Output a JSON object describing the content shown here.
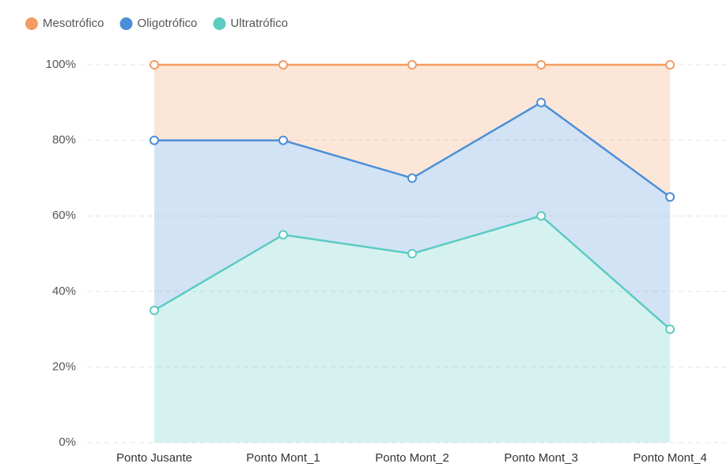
{
  "chart_data": {
    "type": "stacked_area",
    "categories": [
      "Ponto Jusante",
      "Ponto Mont_1",
      "Ponto Mont_2",
      "Ponto Mont_3",
      "Ponto Mont_4"
    ],
    "series": [
      {
        "name": "Mesotrófico",
        "color": "#f39c63",
        "values": [
          20,
          20,
          30,
          10,
          35
        ]
      },
      {
        "name": "Oligotrófico",
        "color": "#4a8fd8",
        "values": [
          45,
          25,
          20,
          30,
          35
        ]
      },
      {
        "name": "Ultratrófico",
        "color": "#5ccbc2",
        "values": [
          35,
          55,
          50,
          60,
          30
        ]
      }
    ],
    "ylim": [
      0,
      100
    ],
    "yticks": [
      {
        "value": 0,
        "label": "0%"
      },
      {
        "value": 20,
        "label": "20%"
      },
      {
        "value": 40,
        "label": "40%"
      },
      {
        "value": 60,
        "label": "60%"
      },
      {
        "value": 80,
        "label": "80%"
      },
      {
        "value": 100,
        "label": "100%"
      }
    ],
    "grid": true,
    "legend": "top-left"
  }
}
